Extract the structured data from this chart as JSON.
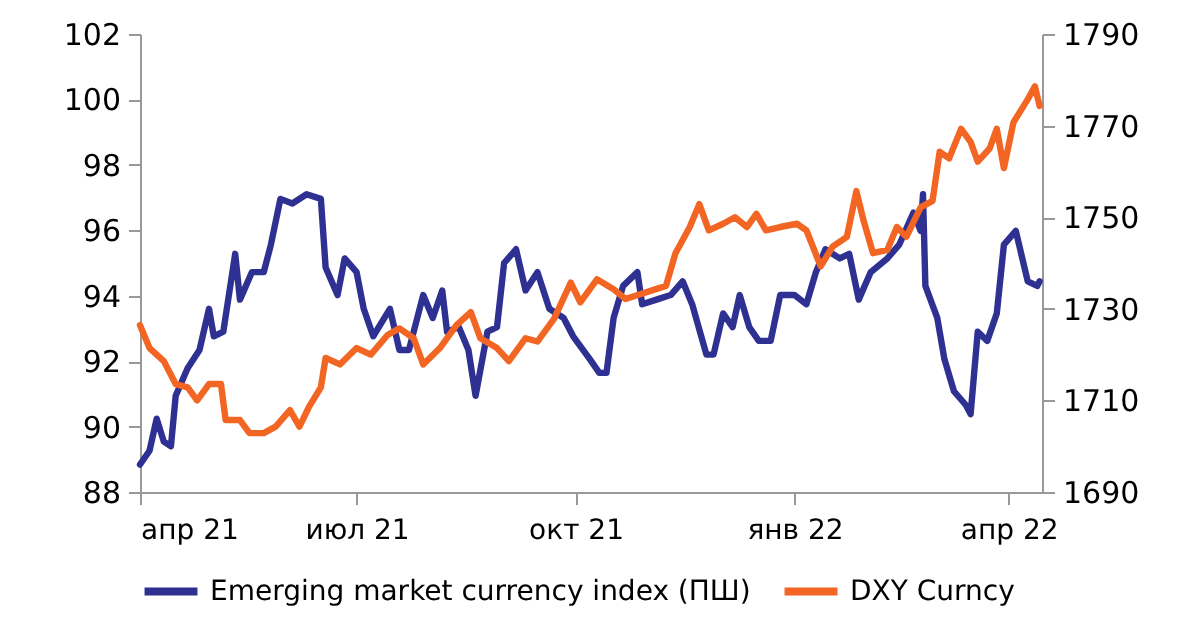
{
  "chart_data": {
    "type": "line",
    "legend": "bottom",
    "xlim": [
      "2021-04-01",
      "2022-04-15"
    ],
    "xticks": [
      {
        "value": "2021-04-01",
        "label": "апр 21"
      },
      {
        "value": "2021-07-01",
        "label": "июл 21"
      },
      {
        "value": "2021-10-01",
        "label": "окт 21"
      },
      {
        "value": "2022-01-01",
        "label": "янв 22"
      },
      {
        "value": "2022-04-01",
        "label": "апр 22"
      }
    ],
    "ylim": [
      88,
      102
    ],
    "yticks": [
      88,
      90,
      92,
      94,
      96,
      98,
      100,
      102
    ],
    "y2lim": [
      1690,
      1790
    ],
    "y2ticks": [
      1690,
      1710,
      1730,
      1750,
      1770,
      1790
    ],
    "series": [
      {
        "name": "Emerging market currency index (ПШ)",
        "color": "#2e3192",
        "axis": "y2",
        "x": [
          "2021-04-01",
          "2021-04-05",
          "2021-04-08",
          "2021-04-11",
          "2021-04-14",
          "2021-04-16",
          "2021-04-21",
          "2021-04-26",
          "2021-04-30",
          "2021-05-02",
          "2021-05-06",
          "2021-05-11",
          "2021-05-13",
          "2021-05-18",
          "2021-05-23",
          "2021-05-26",
          "2021-05-30",
          "2021-06-04",
          "2021-06-10",
          "2021-06-16",
          "2021-06-18",
          "2021-06-23",
          "2021-06-26",
          "2021-07-01",
          "2021-07-04",
          "2021-07-08",
          "2021-07-15",
          "2021-07-19",
          "2021-07-23",
          "2021-07-29",
          "2021-08-02",
          "2021-08-06",
          "2021-08-08",
          "2021-08-13",
          "2021-08-17",
          "2021-08-20",
          "2021-08-25",
          "2021-08-29",
          "2021-09-01",
          "2021-09-06",
          "2021-09-10",
          "2021-09-15",
          "2021-09-20",
          "2021-09-26",
          "2021-09-30",
          "2021-10-07",
          "2021-10-11",
          "2021-10-14",
          "2021-10-17",
          "2021-10-21",
          "2021-10-27",
          "2021-10-29",
          "2021-11-04",
          "2021-11-10",
          "2021-11-15",
          "2021-11-19",
          "2021-11-25",
          "2021-11-28",
          "2021-12-02",
          "2021-12-06",
          "2021-12-09",
          "2021-12-13",
          "2021-12-17",
          "2021-12-22",
          "2021-12-26",
          "2022-01-01",
          "2022-01-06",
          "2022-01-10",
          "2022-01-14",
          "2022-01-20",
          "2022-01-24",
          "2022-01-28",
          "2022-02-02",
          "2022-02-09",
          "2022-02-14",
          "2022-02-20",
          "2022-02-23",
          "2022-02-24",
          "2022-02-25",
          "2022-03-02",
          "2022-03-05",
          "2022-03-09",
          "2022-03-14",
          "2022-03-16",
          "2022-03-19",
          "2022-03-23",
          "2022-03-27",
          "2022-03-30",
          "2022-04-04",
          "2022-04-09",
          "2022-04-13",
          "2022-04-14"
        ],
        "values": [
          1696,
          1699,
          1706,
          1701,
          1700,
          1711,
          1717,
          1721,
          1730,
          1724,
          1725,
          1742,
          1732,
          1738,
          1738,
          1744,
          1754,
          1753,
          1755,
          1754,
          1739,
          1733,
          1741,
          1738,
          1730,
          1724,
          1730,
          1721,
          1721,
          1733,
          1728,
          1734,
          1725,
          1726,
          1721,
          1711,
          1725,
          1726,
          1740,
          1743,
          1734,
          1738,
          1730,
          1728,
          1724,
          1719,
          1716,
          1716,
          1728,
          1735,
          1738,
          1731,
          1732,
          1733,
          1736,
          1731,
          1720,
          1720,
          1729,
          1726,
          1733,
          1726,
          1723,
          1723,
          1733,
          1733,
          1731,
          1738,
          1743,
          1741,
          1742,
          1732,
          1738,
          1741,
          1744,
          1751,
          1747,
          1755,
          1735,
          1728,
          1719,
          1712,
          1709,
          1707,
          1725,
          1723,
          1729,
          1744,
          1747,
          1736,
          1735,
          1736
        ]
      },
      {
        "name": "DXY Curncy",
        "color": "#f26522",
        "x": [
          "2021-04-01",
          "2021-04-05",
          "2021-04-11",
          "2021-04-16",
          "2021-04-21",
          "2021-04-25",
          "2021-04-30",
          "2021-05-05",
          "2021-05-07",
          "2021-05-13",
          "2021-05-17",
          "2021-05-23",
          "2021-05-28",
          "2021-06-03",
          "2021-06-07",
          "2021-06-11",
          "2021-06-16",
          "2021-06-18",
          "2021-06-24",
          "2021-07-01",
          "2021-07-07",
          "2021-07-14",
          "2021-07-19",
          "2021-07-25",
          "2021-07-29",
          "2021-08-05",
          "2021-08-12",
          "2021-08-18",
          "2021-08-22",
          "2021-08-29",
          "2021-09-03",
          "2021-09-10",
          "2021-09-15",
          "2021-09-22",
          "2021-09-29",
          "2021-10-03",
          "2021-10-10",
          "2021-10-17",
          "2021-10-22",
          "2021-11-08",
          "2021-11-12",
          "2021-11-18",
          "2021-11-22",
          "2021-11-26",
          "2021-12-02",
          "2021-12-07",
          "2021-12-12",
          "2021-12-16",
          "2021-12-20",
          "2021-12-26",
          "2022-01-02",
          "2022-01-06",
          "2022-01-12",
          "2022-01-17",
          "2022-01-23",
          "2022-01-27",
          "2022-01-30",
          "2022-02-03",
          "2022-02-09",
          "2022-02-13",
          "2022-02-17",
          "2022-02-23",
          "2022-02-28",
          "2022-03-03",
          "2022-03-07",
          "2022-03-12",
          "2022-03-16",
          "2022-03-19",
          "2022-03-24",
          "2022-03-27",
          "2022-03-30",
          "2022-04-03",
          "2022-04-09",
          "2022-04-12",
          "2022-04-14"
        ],
        "values": [
          93.1,
          92.4,
          92.0,
          91.3,
          91.2,
          90.8,
          91.3,
          91.3,
          90.2,
          90.2,
          89.8,
          89.8,
          90.0,
          90.5,
          90.0,
          90.6,
          91.2,
          92.1,
          91.9,
          92.4,
          92.2,
          92.8,
          93.0,
          92.7,
          91.9,
          92.4,
          93.1,
          93.5,
          92.7,
          92.4,
          92.0,
          92.7,
          92.6,
          93.3,
          94.4,
          93.8,
          94.5,
          94.2,
          93.9,
          94.3,
          95.3,
          96.1,
          96.8,
          96.0,
          96.2,
          96.4,
          96.1,
          96.5,
          96.0,
          96.1,
          96.2,
          96.0,
          94.9,
          95.5,
          95.8,
          97.2,
          96.3,
          95.3,
          95.4,
          96.1,
          95.8,
          96.7,
          96.9,
          98.4,
          98.2,
          99.1,
          98.7,
          98.1,
          98.5,
          99.1,
          97.9,
          99.3,
          100.0,
          100.4,
          99.8
        ]
      }
    ]
  }
}
